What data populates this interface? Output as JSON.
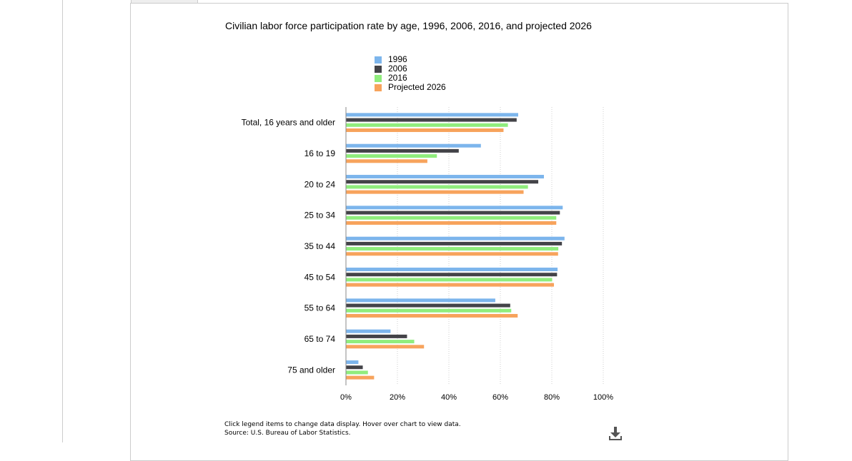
{
  "chart_data": {
    "type": "bar",
    "orientation": "horizontal",
    "title": "Civilian labor force participation rate by age, 1996, 2006, 2016, and projected 2026",
    "categories": [
      "Total, 16 years and older",
      "16 to 19",
      "20 to 24",
      "25 to 34",
      "35 to 44",
      "45 to 54",
      "55 to 64",
      "65 to 74",
      "75 and older"
    ],
    "series": [
      {
        "name": "1996",
        "color": "#7cb5ec",
        "values": [
          66.8,
          52.3,
          76.8,
          84.1,
          84.8,
          82.1,
          57.9,
          17.2,
          4.7
        ]
      },
      {
        "name": "2006",
        "color": "#434348",
        "values": [
          66.2,
          43.7,
          74.6,
          83.0,
          83.8,
          81.9,
          63.7,
          23.6,
          6.4
        ]
      },
      {
        "name": "2016",
        "color": "#90ed7d",
        "values": [
          62.8,
          35.2,
          70.6,
          81.6,
          82.4,
          80.0,
          64.1,
          26.4,
          8.4
        ]
      },
      {
        "name": "Projected 2026",
        "color": "#f7a35c",
        "values": [
          61.1,
          31.5,
          68.9,
          81.6,
          82.3,
          80.7,
          66.6,
          30.2,
          10.8
        ]
      }
    ],
    "xlim": [
      0,
      100
    ],
    "x_ticks": [
      "0%",
      "20%",
      "40%",
      "60%",
      "80%",
      "100%"
    ],
    "grid": "vertical dotted",
    "legend_position": "top"
  },
  "footnote": {
    "line1": "Click legend items to change data display. Hover over chart to view data.",
    "line2": "Source: U.S. Bureau of Labor Statistics."
  },
  "icons": {
    "download": "download-icon"
  }
}
